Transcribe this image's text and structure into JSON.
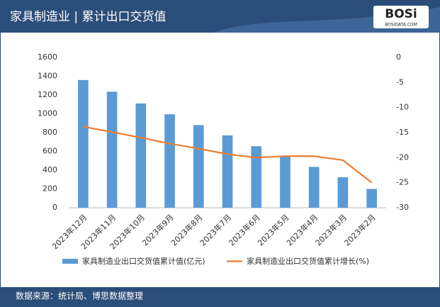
{
  "chart_data": {
    "type": "bar",
    "title": "家具制造业 | 累计出口交货值",
    "logo": "BOSi",
    "logo_sub": "BOSIDATA.COM",
    "source": "数据来源：统计局、博思数据整理",
    "categories": [
      "2023年12月",
      "2023年11月",
      "2023年10月",
      "2023年9月",
      "2023年8月",
      "2023年7月",
      "2023年6月",
      "2023年5月",
      "2023年4月",
      "2023年3月",
      "2023年2月"
    ],
    "series": [
      {
        "name": "家具制造业出口交货值累计值(亿元)",
        "type": "bar",
        "color": "#5b9bd5",
        "values": [
          1360,
          1235,
          1110,
          995,
          880,
          770,
          655,
          545,
          435,
          325,
          200
        ]
      },
      {
        "name": "家具制造业出口交货值累计增长(%)",
        "type": "line",
        "axis": "y2",
        "color": "#ed7d31",
        "values": [
          -13.8,
          -14.9,
          -16.0,
          -17.2,
          -18.2,
          -19.3,
          -20.0,
          -19.7,
          -19.7,
          -20.5,
          -25.0
        ]
      }
    ],
    "ylim": [
      0,
      1600
    ],
    "yticks": [
      0,
      200,
      400,
      600,
      800,
      1000,
      1200,
      1400,
      1600
    ],
    "y2lim": [
      -30,
      0
    ],
    "y2ticks": [
      0,
      -5,
      -10,
      -15,
      -20,
      -25,
      -30
    ],
    "grid": false
  }
}
